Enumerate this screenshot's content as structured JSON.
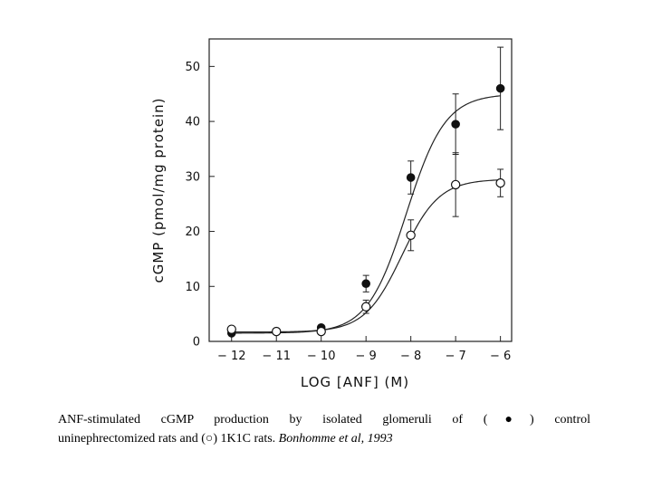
{
  "chart_data": {
    "type": "scatter",
    "xlabel": "LOG [ANF] (M)",
    "ylabel": "cGMP (pmol/mg protein)",
    "xlim": [
      -12.5,
      -5.75
    ],
    "ylim": [
      0,
      55
    ],
    "x_ticks": [
      "-12",
      "-11",
      "-10",
      "-9",
      "-8",
      "-7",
      "-6"
    ],
    "x_tick_values": [
      -12,
      -11,
      -10,
      -9,
      -8,
      -7,
      -6
    ],
    "y_ticks": [
      "0",
      "10",
      "20",
      "30",
      "40",
      "50"
    ],
    "y_tick_values": [
      0,
      10,
      20,
      30,
      40,
      50
    ],
    "series": [
      {
        "marker": "filled-circle",
        "x": [
          -12,
          -11,
          -10,
          -9,
          -8,
          -7,
          -6
        ],
        "y": [
          1.5,
          1.8,
          2.5,
          10.5,
          29.8,
          39.5,
          46.0
        ],
        "error": [
          0.3,
          0.3,
          0.5,
          1.5,
          3.0,
          5.5,
          7.5
        ],
        "fit_curve": {
          "bottom": 1.5,
          "top": 45,
          "log_ec50": -8.1,
          "hill": 1.0
        }
      },
      {
        "marker": "open-circle",
        "x": [
          -12,
          -11,
          -10,
          -9,
          -8,
          -7,
          -6
        ],
        "y": [
          2.2,
          1.8,
          1.8,
          6.3,
          19.3,
          28.5,
          28.8
        ],
        "error": [
          0.3,
          0.3,
          0.3,
          1.2,
          2.8,
          5.8,
          2.5
        ],
        "fit_curve": {
          "bottom": 1.7,
          "top": 29.5,
          "log_ec50": -8.2,
          "hill": 1.05
        }
      }
    ]
  },
  "caption": {
    "line1": "ANF-stimulated cGMP production by isolated glomeruli of (●) control",
    "line2_text": "uninephrectomized rats and (○) 1K1C rats. ",
    "line2_citation": "Bonhomme et al, 1993"
  }
}
